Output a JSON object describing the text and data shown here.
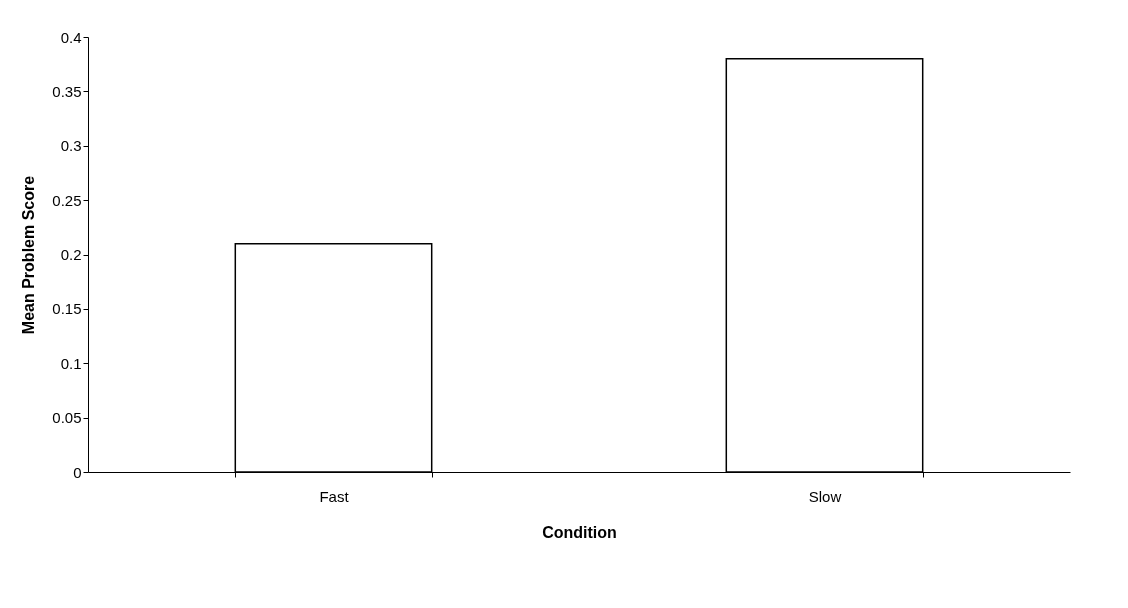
{
  "chart_data": {
    "type": "bar",
    "xlabel": "Condition",
    "ylabel": "Mean Problem Score",
    "categories": [
      "Fast",
      "Slow"
    ],
    "values": [
      0.21,
      0.38
    ],
    "color": "#ffffff",
    "ylim": [
      0,
      0.4
    ],
    "yticks": [
      0,
      0.05,
      0.1,
      0.15,
      0.2,
      0.25,
      0.3,
      0.35,
      0.4
    ],
    "grid": false
  }
}
